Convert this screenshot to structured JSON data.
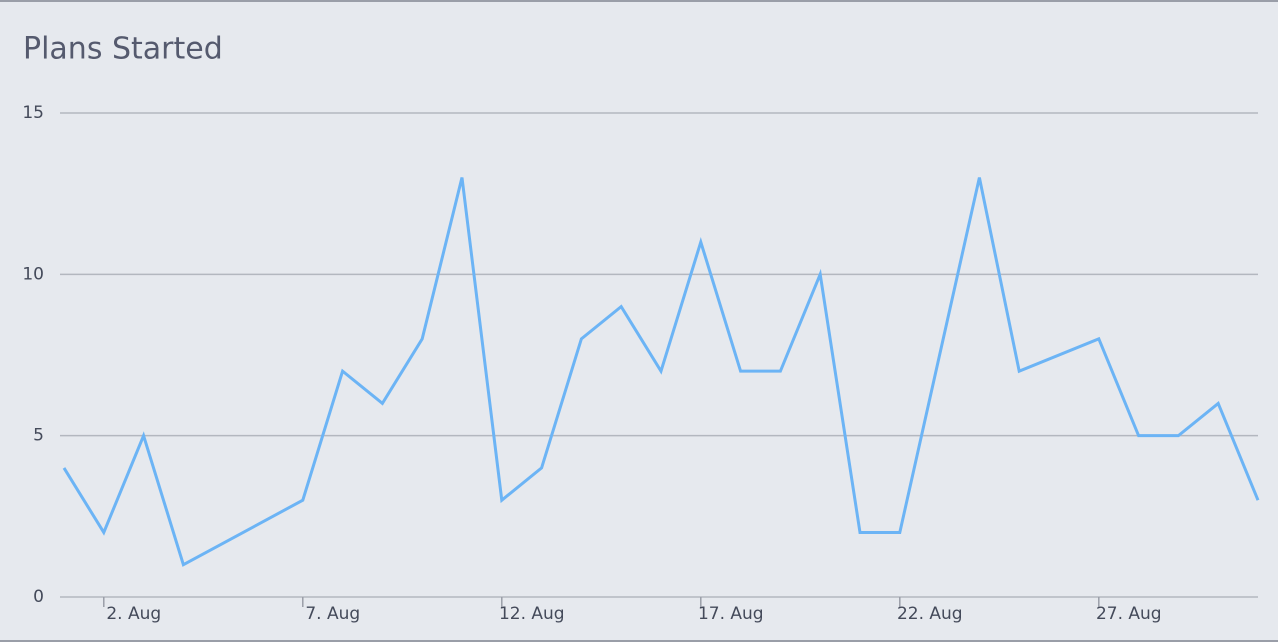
{
  "chart_data": {
    "type": "line",
    "title": "Plans Started",
    "x": [
      1,
      2,
      3,
      4,
      7,
      8,
      9,
      10,
      11,
      12,
      13,
      14,
      15,
      16,
      17,
      18,
      19,
      20,
      21,
      22,
      24,
      25,
      27,
      28,
      29,
      30,
      31
    ],
    "series": [
      {
        "name": "Plans Started",
        "color": "#6cb4f5",
        "values": [
          4,
          2,
          5,
          1,
          3,
          7,
          6,
          8,
          13,
          3,
          4,
          8,
          9,
          7,
          11,
          7,
          7,
          10,
          2,
          2,
          13,
          7,
          8,
          5,
          5,
          6,
          3
        ]
      }
    ],
    "xlim": [
      0.9,
      31
    ],
    "xticks": [
      {
        "value": 2,
        "label": "2. Aug"
      },
      {
        "value": 7,
        "label": "7. Aug"
      },
      {
        "value": 12,
        "label": "12. Aug"
      },
      {
        "value": 17,
        "label": "17. Aug"
      },
      {
        "value": 22,
        "label": "22. Aug"
      },
      {
        "value": 27,
        "label": "27. Aug"
      }
    ],
    "ylim": [
      0,
      15
    ],
    "yticks": [
      0,
      5,
      10,
      15
    ],
    "grid": true
  }
}
